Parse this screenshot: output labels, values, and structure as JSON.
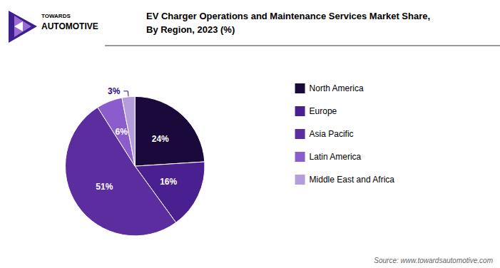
{
  "chart_data": {
    "type": "pie",
    "title": "EV Charger Operations and Maintenance Services Market Share,\nBy Region, 2023 (%)",
    "categories": [
      "North America",
      "Europe",
      "Asia Pacific",
      "Latin America",
      "Middle East and Africa"
    ],
    "values": [
      24,
      16,
      51,
      6,
      3
    ],
    "value_labels": [
      "24%",
      "16%",
      "51%",
      "6%",
      "3%"
    ],
    "colors": [
      "#1a0a3c",
      "#4a2090",
      "#5c2d9e",
      "#8b5ccc",
      "#b39ddb"
    ],
    "data_labels": true,
    "legend": "right",
    "annotations": [
      "Source: www.towardsautomotive.com",
      "TOWARDS",
      "AUTOMOTIVE"
    ]
  }
}
